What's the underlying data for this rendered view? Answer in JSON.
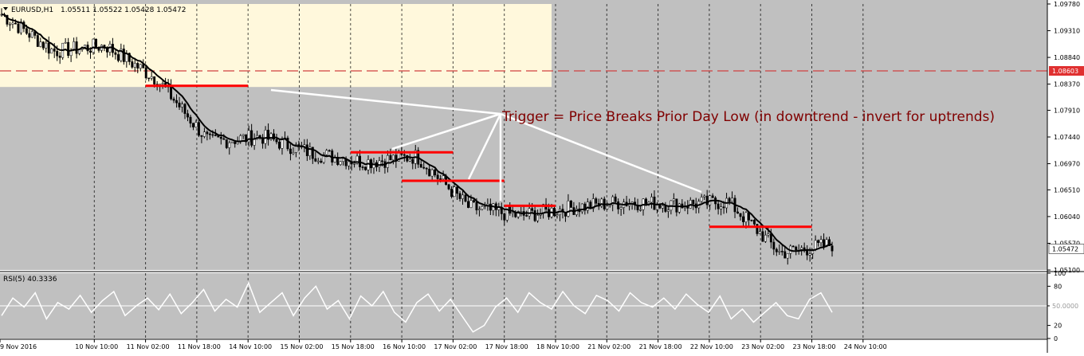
{
  "window": {
    "symbol_label": "EURUSD,H1",
    "ohlc_label": "1.05511 1.05522 1.05428 1.05472"
  },
  "annotation": {
    "text": "Trigger = Price Breaks Prior Day Low (in downtrend - invert for uptrends)"
  },
  "colors": {
    "panel_bg": "#c0c0c0",
    "highlight_bg": "#fff8dc",
    "candle": "#ffffff",
    "candle_outline": "#000000",
    "moving_average": "#000000",
    "trigger_lines": "#ff0000",
    "annotation_text": "#800000",
    "pointer_lines": "#ffffff",
    "level_line": "#d04040",
    "current_price_bg": "#ffffff",
    "level_price_bg": "#e03030",
    "rsi_line": "#ffffff"
  },
  "chart_data": [
    {
      "type": "candlestick",
      "symbol": "EURUSD",
      "timeframe": "H1",
      "ylim": [
        1.051,
        1.0978
      ],
      "y_ticks": [
        "1.09780",
        "1.09310",
        "1.08840",
        "1.08370",
        "1.07910",
        "1.07440",
        "1.06970",
        "1.06510",
        "1.06040",
        "1.05570",
        "1.05100"
      ],
      "y_tick_values": [
        1.0978,
        1.0931,
        1.0884,
        1.0837,
        1.0791,
        1.0744,
        1.0697,
        1.0651,
        1.0604,
        1.0557,
        1.051
      ],
      "x_ticks": [
        "9 Nov 2016",
        "10 Nov 10:00",
        "11 Nov 02:00",
        "11 Nov 18:00",
        "14 Nov 10:00",
        "15 Nov 02:00",
        "15 Nov 18:00",
        "16 Nov 10:00",
        "17 Nov 02:00",
        "17 Nov 18:00",
        "18 Nov 10:00",
        "21 Nov 02:00",
        "21 Nov 18:00",
        "22 Nov 10:00",
        "23 Nov 02:00",
        "23 Nov 18:00",
        "24 Nov 10:00"
      ],
      "current_price": "1.05472",
      "level_price": "1.08603",
      "level_value": 1.08603,
      "highlight_zone_low": 1.0832,
      "series": [
        {
          "name": "EURUSD",
          "x": [
            "9 Nov 2016",
            "10 Nov 10:00",
            "11 Nov 02:00",
            "11 Nov 18:00",
            "14 Nov 10:00",
            "15 Nov 02:00",
            "15 Nov 18:00",
            "16 Nov 10:00",
            "17 Nov 02:00",
            "17 Nov 18:00",
            "18 Nov 10:00",
            "21 Nov 02:00",
            "21 Nov 18:00",
            "22 Nov 10:00",
            "23 Nov 02:00",
            "23 Nov 18:00",
            "24 Nov 10:00"
          ],
          "values": [
            1.096,
            1.0895,
            1.0905,
            1.0845,
            1.0735,
            1.0745,
            1.0715,
            1.07,
            1.071,
            1.062,
            1.0605,
            1.062,
            1.063,
            1.0625,
            1.063,
            1.054,
            1.0555
          ]
        }
      ],
      "trigger_levels": [
        {
          "from": "11 Nov 02:00",
          "to": "14 Nov 10:00",
          "value": 1.0834
        },
        {
          "from": "15 Nov 18:00",
          "to": "17 Nov 02:00",
          "value": 1.0717
        },
        {
          "from": "16 Nov 10:00",
          "to": "17 Nov 18:00",
          "value": 1.0667
        },
        {
          "from": "17 Nov 18:00",
          "to": "18 Nov 10:00",
          "value": 1.0623
        },
        {
          "from": "22 Nov 10:00",
          "to": "23 Nov 18:00",
          "value": 1.0586
        }
      ]
    },
    {
      "type": "line",
      "indicator_label": "RSI(5) 40.3336",
      "ylim": [
        0,
        100
      ],
      "y_ticks": [
        "100",
        "80",
        "50.0000",
        "20",
        "0"
      ],
      "y_tick_values": [
        100,
        80,
        50,
        20,
        0
      ],
      "reference_level": 50,
      "series": [
        {
          "name": "RSI(5)",
          "values": [
            35,
            62,
            48,
            70,
            30,
            55,
            45,
            66,
            40,
            58,
            72,
            35,
            50,
            62,
            44,
            68,
            38,
            55,
            75,
            42,
            60,
            48,
            85,
            40,
            55,
            70,
            35,
            62,
            80,
            45,
            58,
            30,
            65,
            50,
            72,
            40,
            25,
            55,
            68,
            42,
            60,
            35,
            10,
            20,
            48,
            62,
            40,
            70,
            55,
            45,
            72,
            50,
            38,
            66,
            58,
            42,
            70,
            55,
            48,
            62,
            45,
            68,
            52,
            40,
            65,
            30,
            45,
            25,
            40,
            55,
            35,
            30,
            60,
            70,
            40
          ]
        }
      ]
    }
  ]
}
